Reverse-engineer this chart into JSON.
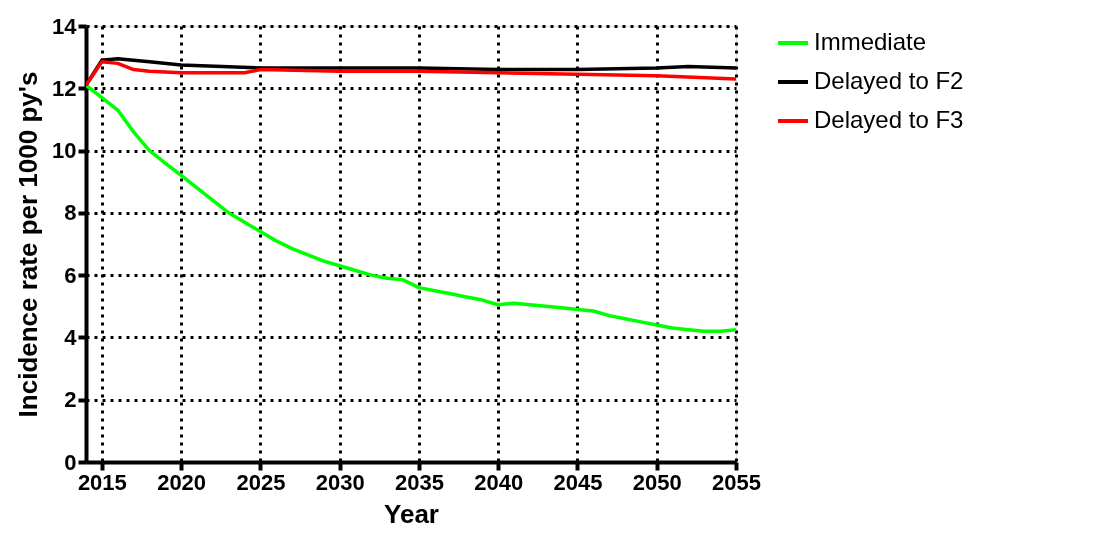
{
  "chart_data": {
    "type": "line",
    "xlabel": "Year",
    "ylabel": "Incidence rate per 1000 py's",
    "xlim": [
      2014,
      2055
    ],
    "xticks": [
      2015,
      2020,
      2025,
      2030,
      2035,
      2040,
      2045,
      2050,
      2055
    ],
    "ylim": [
      0,
      14
    ],
    "yticks": [
      0,
      2,
      4,
      6,
      8,
      10,
      12,
      14
    ],
    "grid": true,
    "legend": "top right",
    "marker": "none",
    "line_style": "solid",
    "series": [
      {
        "name": "Immediate",
        "color": "#00ff00",
        "x": [
          2014,
          2015,
          2016,
          2017,
          2018,
          2019,
          2020,
          2021,
          2022,
          2023,
          2024,
          2025,
          2026,
          2027,
          2028,
          2029,
          2030,
          2031,
          2032,
          2033,
          2034,
          2035,
          2036,
          2037,
          2038,
          2039,
          2040,
          2041,
          2042,
          2043,
          2044,
          2045,
          2046,
          2047,
          2048,
          2049,
          2050,
          2051,
          2052,
          2053,
          2054,
          2055
        ],
        "values": [
          12.1,
          11.7,
          11.3,
          10.6,
          10.0,
          9.6,
          9.2,
          8.8,
          8.4,
          8.0,
          7.7,
          7.4,
          7.1,
          6.85,
          6.65,
          6.45,
          6.3,
          6.15,
          6.0,
          5.9,
          5.85,
          5.6,
          5.5,
          5.4,
          5.3,
          5.2,
          5.05,
          5.1,
          5.05,
          5.0,
          4.95,
          4.9,
          4.85,
          4.7,
          4.6,
          4.5,
          4.4,
          4.3,
          4.25,
          4.2,
          4.2,
          4.25
        ]
      },
      {
        "name": "Delayed to F2",
        "color": "#000000",
        "x": [
          2014,
          2015,
          2016,
          2018,
          2020,
          2025,
          2030,
          2035,
          2040,
          2045,
          2050,
          2052,
          2055
        ],
        "values": [
          12.1,
          12.9,
          12.95,
          12.85,
          12.75,
          12.65,
          12.65,
          12.65,
          12.6,
          12.6,
          12.65,
          12.7,
          12.65
        ]
      },
      {
        "name": "Delayed to F3",
        "color": "#ff0000",
        "x": [
          2014,
          2015,
          2016,
          2017,
          2018,
          2020,
          2024,
          2025,
          2030,
          2035,
          2040,
          2045,
          2050,
          2055
        ],
        "values": [
          12.1,
          12.85,
          12.8,
          12.6,
          12.55,
          12.5,
          12.5,
          12.6,
          12.55,
          12.55,
          12.5,
          12.45,
          12.4,
          12.3
        ]
      }
    ]
  }
}
